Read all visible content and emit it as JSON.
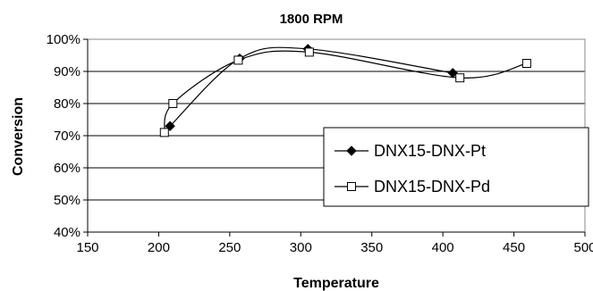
{
  "chart_data": {
    "type": "scatter",
    "title": "1800 RPM",
    "xlabel": "Temperature",
    "ylabel": "Conversion",
    "xlim": [
      150,
      500
    ],
    "ylim": [
      40,
      100
    ],
    "x_ticks": [
      150,
      200,
      250,
      300,
      350,
      400,
      450,
      500
    ],
    "x_tick_labels": [
      "150",
      "200",
      "250",
      "300",
      "350",
      "400",
      "450",
      "500"
    ],
    "y_ticks": [
      40,
      50,
      60,
      70,
      80,
      90,
      100
    ],
    "y_tick_labels": [
      "40%",
      "50%",
      "60%",
      "70%",
      "80%",
      "90%",
      "100%"
    ],
    "grid": "horizontal",
    "legend_position": "lower-right",
    "smooth_lines": true,
    "series": [
      {
        "name": "DNX15-DNX-Pt",
        "marker": "diamond",
        "color": "#000000",
        "points": [
          {
            "x": 208,
            "y": 73
          },
          {
            "x": 257,
            "y": 94
          },
          {
            "x": 305,
            "y": 97
          },
          {
            "x": 407,
            "y": 89.5
          }
        ]
      },
      {
        "name": "DNX15-DNX-Pd",
        "marker": "square",
        "color": "#000000",
        "points": [
          {
            "x": 204,
            "y": 71
          },
          {
            "x": 210,
            "y": 80
          },
          {
            "x": 256,
            "y": 93.5
          },
          {
            "x": 306,
            "y": 96
          },
          {
            "x": 412,
            "y": 88
          },
          {
            "x": 459,
            "y": 92.5
          }
        ]
      }
    ]
  }
}
